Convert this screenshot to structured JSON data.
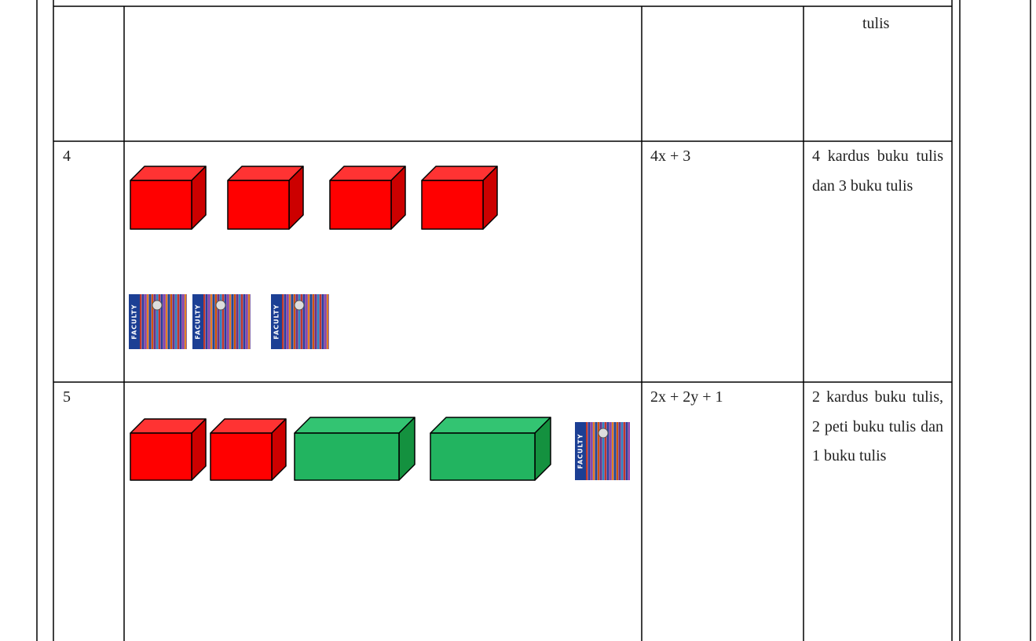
{
  "table": {
    "rows": [
      {
        "description": "tulis"
      },
      {
        "number": "4",
        "expression": "4x + 3",
        "description": "4 kardus buku tulis dan 3 buku tulis"
      },
      {
        "number": "5",
        "expression": "2x + 2y + 1",
        "description": "2 kardus buku tulis, 2 peti buku tulis dan 1 buku tulis"
      }
    ]
  },
  "notebook_label": "FACULTY"
}
